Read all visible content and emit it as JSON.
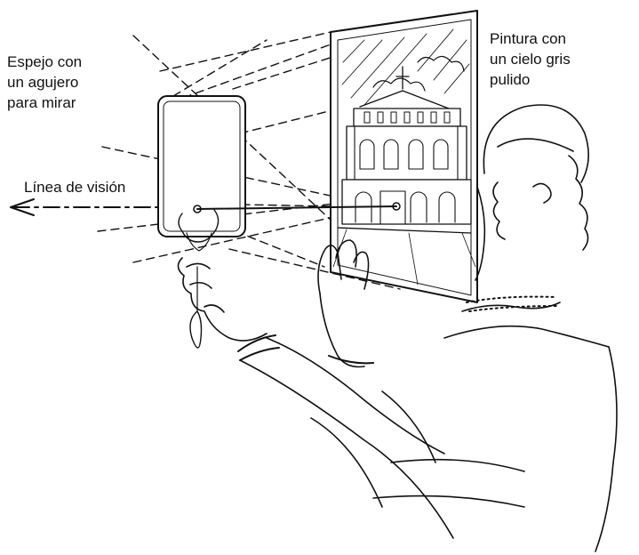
{
  "labels": {
    "mirror": [
      "Espejo con",
      "un agujero",
      "para mirar"
    ],
    "painting": [
      "Pintura con",
      "un cielo gris",
      "pulido"
    ],
    "sight_line": "Línea de visión"
  }
}
